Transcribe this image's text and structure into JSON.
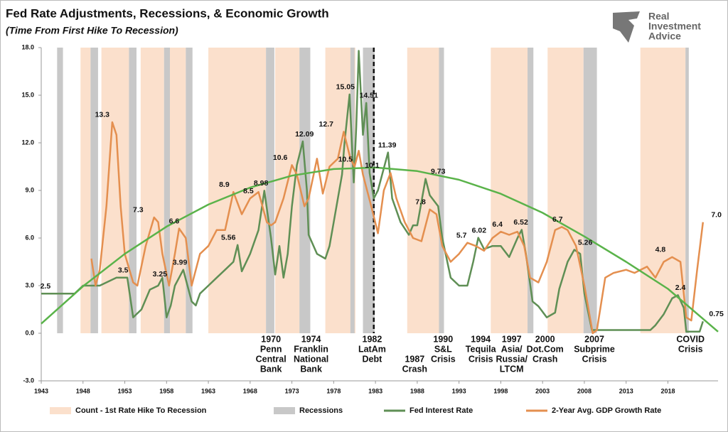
{
  "chart_data": {
    "type": "line",
    "title": "Fed Rate Adjustments, Recessions, & Economic Growth",
    "subtitle": "(Time From First Hike To Recession)",
    "brand": [
      "Real",
      "Investment",
      "Advice"
    ],
    "xlim": [
      1943,
      2024
    ],
    "xticks": [
      1943,
      1948,
      1953,
      1958,
      1963,
      1968,
      1973,
      1978,
      1983,
      1988,
      1993,
      1998,
      2003,
      2008,
      2013,
      2018
    ],
    "ylim": [
      -3,
      18
    ],
    "yticks": [
      {
        "value": 18,
        "label": "18.0"
      },
      {
        "value": 15,
        "label": "15.0"
      },
      {
        "value": 12,
        "label": "12.0"
      },
      {
        "value": 9,
        "label": "9.0"
      },
      {
        "value": 6,
        "label": "6.0"
      },
      {
        "value": 3,
        "label": "3.0"
      },
      {
        "value": 0,
        "label": "0.0"
      },
      {
        "value": -3,
        "label": "-3.0"
      }
    ],
    "divider_x": 1982.8,
    "bands": [
      {
        "name": "Count - 1st Rate Hike To Recession",
        "color": "#fbe0cc",
        "spans": [
          [
            1947.7,
            1948.9
          ],
          [
            1950.2,
            1953.5
          ],
          [
            1954.9,
            1957.7
          ],
          [
            1958.1,
            1960.3
          ],
          [
            1963,
            1969.9
          ],
          [
            1971,
            1973.9
          ],
          [
            1977,
            1980.6
          ],
          [
            1986.8,
            1990.6
          ],
          [
            1996.8,
            2001.2
          ],
          [
            2003.6,
            2007.9
          ],
          [
            2014.7,
            2020.1
          ]
        ]
      },
      {
        "name": "Recessions",
        "color": "#c8c8c8",
        "spans": [
          [
            1944.9,
            1945.6
          ],
          [
            1948.9,
            1949.8
          ],
          [
            1953.5,
            1954.4
          ],
          [
            1957.7,
            1958.4
          ],
          [
            1960.3,
            1961.1
          ],
          [
            1969.9,
            1970.9
          ],
          [
            1973.9,
            1975.2
          ],
          [
            1980,
            1980.5
          ],
          [
            1981.5,
            1982.9
          ],
          [
            1990.6,
            1991.2
          ],
          [
            2001.2,
            2001.9
          ],
          [
            2007.9,
            2009.5
          ],
          [
            2020.1,
            2020.5
          ]
        ]
      }
    ],
    "trend": {
      "color": "#5ab34a",
      "x": [
        1943,
        1948,
        1953,
        1958,
        1963,
        1968,
        1973,
        1978,
        1983,
        1988,
        1993,
        1998,
        2003,
        2008,
        2013,
        2018,
        2024
      ],
      "values": [
        0.6,
        2.96,
        5.0,
        6.72,
        8.11,
        9.18,
        9.93,
        10.35,
        10.44,
        10.22,
        9.67,
        8.79,
        7.59,
        6.1,
        4.5,
        2.8,
        0.1
      ]
    },
    "series": [
      {
        "name": "Fed Interest Rate",
        "color": "#5f8f55",
        "x": [
          1943,
          1947,
          1948,
          1950,
          1952,
          1953.3,
          1954,
          1955,
          1956,
          1957,
          1957.5,
          1958,
          1958.5,
          1959,
          1960,
          1960.5,
          1961,
          1961.5,
          1962,
          1963,
          1964,
          1965,
          1966,
          1966.5,
          1967,
          1968,
          1969,
          1969.7,
          1970.5,
          1971,
          1971.5,
          1972,
          1972.5,
          1973,
          1973.6,
          1974.3,
          1974.8,
          1975,
          1976,
          1977,
          1977.5,
          1978,
          1979,
          1979.3,
          1979.9,
          1980.4,
          1980.7,
          1981,
          1981.5,
          1981.9,
          1982.3,
          1982.8,
          1983.3,
          1984.5,
          1985,
          1986,
          1987,
          1987.5,
          1988,
          1989,
          1989.5,
          1990.5,
          1991,
          1992,
          1993,
          1994,
          1994.7,
          1995.3,
          1996,
          1997,
          1998,
          1999,
          2000,
          2000.5,
          2001,
          2001.8,
          2002.5,
          2003.5,
          2004.5,
          2005,
          2006,
          2006.8,
          2007.5,
          2008,
          2008.9,
          2015.9,
          2016.5,
          2017.5,
          2018.5,
          2019.2,
          2019.9,
          2020.2,
          2021.8,
          2022.2
        ],
        "values": [
          2.5,
          2.5,
          3.0,
          3.0,
          3.5,
          3.5,
          1.0,
          1.5,
          2.75,
          3.0,
          3.5,
          1.0,
          1.75,
          3.0,
          4.0,
          3.0,
          2.0,
          1.75,
          2.5,
          3.0,
          3.5,
          4.0,
          4.5,
          5.56,
          3.9,
          5.0,
          6.5,
          8.98,
          6.0,
          3.7,
          5.5,
          3.5,
          5.0,
          8.0,
          10.6,
          12.09,
          9.0,
          6.2,
          5.0,
          4.7,
          5.5,
          7.0,
          10.0,
          12.0,
          15.05,
          9.5,
          13.0,
          17.8,
          12.5,
          14.51,
          10.1,
          8.5,
          9.0,
          11.39,
          8.5,
          7.0,
          6.2,
          6.8,
          6.8,
          9.73,
          8.7,
          8.0,
          6.0,
          3.5,
          3.0,
          3.0,
          4.5,
          6.02,
          5.3,
          5.5,
          5.5,
          4.8,
          6.0,
          6.52,
          5.0,
          2.0,
          1.7,
          1.0,
          1.3,
          2.8,
          4.5,
          5.26,
          5.0,
          2.5,
          0.2,
          0.2,
          0.5,
          1.2,
          2.2,
          2.4,
          1.6,
          0.1,
          0.1,
          0.75
        ]
      },
      {
        "name": "2-Year Avg. GDP Growth Rate",
        "color": "#e48f4f",
        "x": [
          1949,
          1949.5,
          1950,
          1950.8,
          1951.5,
          1952,
          1952.5,
          1953,
          1954,
          1954.5,
          1955.5,
          1956.5,
          1957,
          1957.5,
          1958.3,
          1959,
          1959.5,
          1960.3,
          1961,
          1962,
          1963,
          1964,
          1965,
          1966,
          1967,
          1968,
          1969,
          1970,
          1970.5,
          1971,
          1972,
          1973,
          1973.6,
          1974.5,
          1975,
          1976,
          1976.7,
          1977.5,
          1978.5,
          1979.2,
          1980,
          1980.5,
          1981,
          1981.5,
          1982.5,
          1983.3,
          1984,
          1984.8,
          1985.5,
          1986.5,
          1987.5,
          1988.5,
          1989.5,
          1990.3,
          1991,
          1992,
          1993,
          1994,
          1995,
          1996,
          1997,
          1998,
          1999,
          2000,
          2000.8,
          2001.5,
          2002.5,
          2003.5,
          2004.5,
          2005.3,
          2006,
          2007,
          2008,
          2009,
          2009.5,
          2010.5,
          2011.5,
          2013,
          2014,
          2015.5,
          2016.5,
          2017.5,
          2018.5,
          2019.5,
          2020.2,
          2020.8,
          2021.5,
          2022.2
        ],
        "values": [
          4.7,
          3.0,
          4.0,
          8.0,
          13.3,
          12.5,
          8.0,
          5.0,
          3.2,
          3.0,
          5.5,
          7.3,
          7.0,
          5.0,
          3.0,
          5.0,
          6.6,
          6.0,
          3.0,
          5.0,
          5.5,
          6.5,
          6.5,
          8.9,
          7.5,
          8.5,
          8.9,
          7.0,
          6.8,
          7.0,
          8.5,
          10.6,
          10.0,
          8.0,
          8.5,
          11.0,
          8.8,
          10.5,
          11.0,
          12.7,
          11.0,
          10.5,
          11.5,
          10.0,
          8.0,
          6.3,
          9.0,
          10.1,
          8.5,
          7.0,
          6.0,
          5.8,
          7.8,
          7.5,
          5.5,
          4.5,
          5.0,
          5.7,
          5.5,
          5.2,
          6.0,
          6.4,
          6.2,
          6.4,
          5.5,
          3.5,
          3.2,
          4.5,
          6.5,
          6.7,
          6.5,
          5.5,
          3.0,
          0.0,
          0.2,
          3.5,
          3.8,
          4.0,
          3.8,
          4.2,
          3.5,
          4.5,
          4.8,
          4.5,
          1.0,
          0.8,
          4.0,
          7.0
        ]
      }
    ],
    "annotations": [
      {
        "label": "2.5",
        "value": 2.5,
        "x": 1943.5
      },
      {
        "label": "13.3",
        "value": 13.3,
        "x": 1950.3
      },
      {
        "label": "7.3",
        "value": 7.3,
        "x": 1954.6
      },
      {
        "label": "3.5",
        "value": 3.5,
        "x": 1952.8
      },
      {
        "label": "6.6",
        "value": 6.6,
        "x": 1958.9
      },
      {
        "label": "3.25",
        "value": 3.25,
        "x": 1957.2
      },
      {
        "label": "3.99",
        "value": 3.99,
        "x": 1959.6
      },
      {
        "label": "8.9",
        "value": 8.9,
        "x": 1964.9
      },
      {
        "label": "5.56",
        "value": 5.56,
        "x": 1965.4
      },
      {
        "label": "8.5",
        "value": 8.5,
        "x": 1967.8
      },
      {
        "label": "8.98",
        "value": 8.98,
        "x": 1969.3
      },
      {
        "label": "10.6",
        "value": 10.6,
        "x": 1971.6
      },
      {
        "label": "12.09",
        "value": 12.09,
        "x": 1974.5
      },
      {
        "label": "12.7",
        "value": 12.7,
        "x": 1977.1
      },
      {
        "label": "15.05",
        "value": 15.05,
        "x": 1979.4
      },
      {
        "label": "10.5",
        "value": 10.5,
        "x": 1979.4
      },
      {
        "label": "14.51",
        "value": 14.51,
        "x": 1982.2
      },
      {
        "label": "10.1",
        "value": 10.1,
        "x": 1982.6
      },
      {
        "label": "11.39",
        "value": 11.39,
        "x": 1984.4
      },
      {
        "label": "7.8",
        "value": 7.8,
        "x": 1988.4
      },
      {
        "label": "9.73",
        "value": 9.73,
        "x": 1990.5
      },
      {
        "label": "5.7",
        "value": 5.7,
        "x": 1993.3
      },
      {
        "label": "6.02",
        "value": 6.02,
        "x": 1995.4
      },
      {
        "label": "6.4",
        "value": 6.4,
        "x": 1997.6
      },
      {
        "label": "6.52",
        "value": 6.52,
        "x": 2000.4
      },
      {
        "label": "6.7",
        "value": 6.7,
        "x": 2004.8
      },
      {
        "label": "5.26",
        "value": 5.26,
        "x": 2008.1
      },
      {
        "label": "4.8",
        "value": 4.8,
        "x": 2017.1
      },
      {
        "label": "2.4",
        "value": 2.4,
        "x": 2019.5
      },
      {
        "label": "7.0",
        "value": 7.0,
        "x": 2023.8
      },
      {
        "label": "0.75",
        "value": 0.75,
        "x": 2023.8
      }
    ],
    "events": [
      {
        "x": 1970.5,
        "lines": [
          "1970",
          "Penn",
          "Central",
          "Bank"
        ]
      },
      {
        "x": 1975.3,
        "lines": [
          "1974",
          "Franklin",
          "National",
          "Bank"
        ]
      },
      {
        "x": 1982.6,
        "lines": [
          "1982",
          "LatAm",
          "Debt"
        ]
      },
      {
        "x": 1987.7,
        "lines": [
          "1987",
          "Crash"
        ]
      },
      {
        "x": 1991.1,
        "lines": [
          "1990",
          "S&L",
          "Crisis"
        ]
      },
      {
        "x": 1995.6,
        "lines": [
          "1994",
          "Tequila",
          "Crisis"
        ]
      },
      {
        "x": 1999.3,
        "lines": [
          "1997",
          "Asia/",
          "Russia/",
          "LTCM"
        ]
      },
      {
        "x": 2003.3,
        "lines": [
          "2000",
          "Dot.Com",
          "Crash"
        ]
      },
      {
        "x": 2009.2,
        "lines": [
          "2007",
          "Subprime",
          "Crisis"
        ]
      },
      {
        "x": 2020.7,
        "lines": [
          "COVID",
          "Crisis"
        ]
      }
    ]
  }
}
